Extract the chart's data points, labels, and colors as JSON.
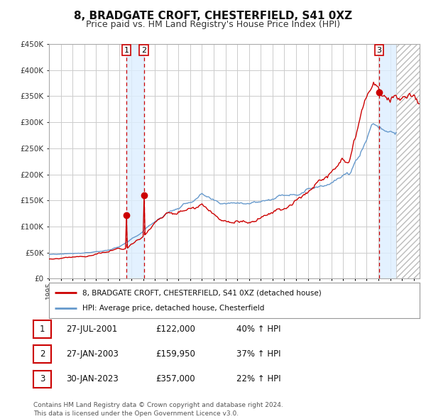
{
  "title": "8, BRADGATE CROFT, CHESTERFIELD, S41 0XZ",
  "subtitle": "Price paid vs. HM Land Registry's House Price Index (HPI)",
  "footer": "Contains HM Land Registry data © Crown copyright and database right 2024.\nThis data is licensed under the Open Government Licence v3.0.",
  "legend_line1": "8, BRADGATE CROFT, CHESTERFIELD, S41 0XZ (detached house)",
  "legend_line2": "HPI: Average price, detached house, Chesterfield",
  "transactions": [
    {
      "num": 1,
      "date": "27-JUL-2001",
      "price": "£122,000",
      "pct": "40%",
      "dir": "↑",
      "rel": "HPI",
      "year": 2001.57
    },
    {
      "num": 2,
      "date": "27-JAN-2003",
      "price": "£159,950",
      "pct": "37%",
      "dir": "↑",
      "rel": "HPI",
      "year": 2003.07
    },
    {
      "num": 3,
      "date": "30-JAN-2023",
      "price": "£357,000",
      "pct": "22%",
      "dir": "↑",
      "rel": "HPI",
      "year": 2023.07
    }
  ],
  "sale_points": [
    {
      "year": 2001.57,
      "value": 122000
    },
    {
      "year": 2003.07,
      "value": 159950
    },
    {
      "year": 2023.07,
      "value": 357000
    }
  ],
  "ylim": [
    0,
    450000
  ],
  "xlim_start": 1995.0,
  "xlim_end": 2026.5,
  "background_color": "#ffffff",
  "grid_color": "#cccccc",
  "hpi_line_color": "#6699cc",
  "sale_line_color": "#cc0000",
  "sale_dot_color": "#cc0000",
  "dashed_line_color": "#cc0000",
  "shade_color": "#ddeeff",
  "title_fontsize": 11,
  "subtitle_fontsize": 9,
  "tick_label_color": "#333333",
  "label_box_color": "#cc0000",
  "hatch_start": 2024.5
}
